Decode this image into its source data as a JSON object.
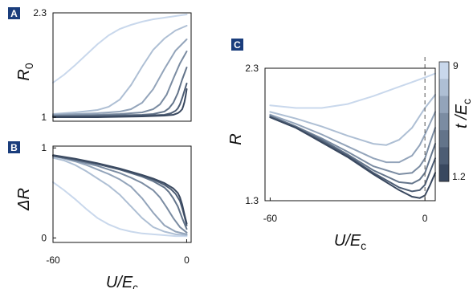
{
  "chart_data": [
    {
      "panel": "A",
      "type": "line",
      "xlim": [
        -60,
        2
      ],
      "ylim": [
        0.95,
        2.3
      ],
      "xticks": [],
      "yticks": [
        {
          "value": 2.3,
          "label": "2.3"
        },
        {
          "value": 1.0,
          "label": "1"
        }
      ],
      "ylabel": {
        "main": "R",
        "sub": "0"
      },
      "xlabel": null,
      "series": [
        {
          "x": [
            -60,
            -55,
            -50,
            -45,
            -40,
            -35,
            -30,
            -25,
            -20,
            -15,
            -10,
            -5,
            0
          ],
          "y": [
            1.43,
            1.53,
            1.65,
            1.78,
            1.91,
            2.02,
            2.1,
            2.15,
            2.19,
            2.22,
            2.24,
            2.26,
            2.28
          ]
        },
        {
          "x": [
            -60,
            -50,
            -40,
            -35,
            -30,
            -25,
            -20,
            -15,
            -10,
            -5,
            0
          ],
          "y": [
            1.04,
            1.06,
            1.09,
            1.13,
            1.22,
            1.4,
            1.63,
            1.84,
            1.98,
            2.08,
            2.14
          ]
        },
        {
          "x": [
            -60,
            -40,
            -30,
            -25,
            -20,
            -15,
            -10,
            -5,
            0
          ],
          "y": [
            1.03,
            1.05,
            1.07,
            1.1,
            1.18,
            1.35,
            1.6,
            1.83,
            1.97
          ]
        },
        {
          "x": [
            -60,
            -40,
            -30,
            -20,
            -15,
            -12,
            -9,
            -6,
            -3,
            0
          ],
          "y": [
            1.02,
            1.03,
            1.04,
            1.06,
            1.1,
            1.16,
            1.28,
            1.48,
            1.67,
            1.82
          ]
        },
        {
          "x": [
            -60,
            -40,
            -20,
            -15,
            -10,
            -8,
            -6,
            -4,
            -2,
            0
          ],
          "y": [
            1.01,
            1.02,
            1.03,
            1.04,
            1.07,
            1.11,
            1.18,
            1.3,
            1.47,
            1.62
          ]
        },
        {
          "x": [
            -60,
            -40,
            -20,
            -10,
            -7,
            -5,
            -4,
            -3,
            -2,
            -1,
            0
          ],
          "y": [
            1.01,
            1.01,
            1.02,
            1.03,
            1.05,
            1.08,
            1.11,
            1.16,
            1.24,
            1.33,
            1.42
          ]
        },
        {
          "x": [
            -60,
            -40,
            -20,
            -10,
            -6,
            -4,
            -3,
            -2,
            -1.5,
            -1,
            -0.5,
            0
          ],
          "y": [
            1.0,
            1.0,
            1.01,
            1.02,
            1.03,
            1.05,
            1.07,
            1.1,
            1.14,
            1.19,
            1.26,
            1.35
          ]
        }
      ]
    },
    {
      "panel": "B",
      "type": "line",
      "xlim": [
        -60,
        2
      ],
      "ylim": [
        -0.05,
        1.02
      ],
      "xticks": [
        {
          "value": -60,
          "label": "-60"
        },
        {
          "value": 0,
          "label": "0"
        }
      ],
      "yticks": [
        {
          "value": 1.0,
          "label": "1"
        },
        {
          "value": 0.0,
          "label": "0"
        }
      ],
      "ylabel": {
        "main": "ΔR",
        "sub": ""
      },
      "xlabel": {
        "main": "U/E",
        "sub": "c"
      },
      "series": [
        {
          "x": [
            -60,
            -55,
            -50,
            -45,
            -40,
            -35,
            -30,
            -25,
            -20,
            -15,
            -10,
            -5,
            0
          ],
          "y": [
            0.62,
            0.53,
            0.43,
            0.32,
            0.22,
            0.15,
            0.1,
            0.07,
            0.05,
            0.04,
            0.03,
            0.02,
            0.02
          ]
        },
        {
          "x": [
            -60,
            -55,
            -50,
            -45,
            -40,
            -35,
            -30,
            -25,
            -20,
            -15,
            -10,
            -5,
            0
          ],
          "y": [
            0.89,
            0.86,
            0.81,
            0.74,
            0.66,
            0.58,
            0.48,
            0.35,
            0.22,
            0.12,
            0.07,
            0.04,
            0.03
          ]
        },
        {
          "x": [
            -60,
            -55,
            -50,
            -45,
            -40,
            -35,
            -30,
            -25,
            -20,
            -15,
            -10,
            -5,
            0
          ],
          "y": [
            0.91,
            0.88,
            0.85,
            0.81,
            0.76,
            0.71,
            0.65,
            0.57,
            0.44,
            0.28,
            0.14,
            0.07,
            0.04
          ]
        },
        {
          "x": [
            -60,
            -55,
            -50,
            -45,
            -40,
            -35,
            -30,
            -25,
            -20,
            -15,
            -12,
            -9,
            -6,
            -3,
            0
          ],
          "y": [
            0.91,
            0.89,
            0.86,
            0.83,
            0.8,
            0.76,
            0.72,
            0.67,
            0.61,
            0.53,
            0.45,
            0.34,
            0.22,
            0.12,
            0.06
          ]
        },
        {
          "x": [
            -60,
            -50,
            -40,
            -30,
            -20,
            -15,
            -10,
            -8,
            -6,
            -4,
            -2,
            0
          ],
          "y": [
            0.91,
            0.87,
            0.82,
            0.76,
            0.68,
            0.63,
            0.56,
            0.51,
            0.44,
            0.35,
            0.22,
            0.1
          ]
        },
        {
          "x": [
            -60,
            -50,
            -40,
            -30,
            -20,
            -15,
            -10,
            -7,
            -5,
            -3,
            -2,
            -1,
            0
          ],
          "y": [
            0.91,
            0.87,
            0.82,
            0.76,
            0.69,
            0.65,
            0.59,
            0.54,
            0.49,
            0.41,
            0.33,
            0.24,
            0.14
          ]
        },
        {
          "x": [
            -60,
            -50,
            -40,
            -30,
            -20,
            -15,
            -10,
            -6,
            -4,
            -3,
            -2,
            -1,
            0
          ],
          "y": [
            0.92,
            0.88,
            0.83,
            0.77,
            0.7,
            0.66,
            0.61,
            0.55,
            0.5,
            0.45,
            0.37,
            0.26,
            0.16
          ]
        }
      ]
    },
    {
      "panel": "C",
      "type": "line",
      "xlim": [
        -62,
        4
      ],
      "ylim": [
        1.3,
        2.3
      ],
      "xticks": [
        {
          "value": -60,
          "label": "-60"
        },
        {
          "value": 0,
          "label": "0"
        }
      ],
      "yticks": [
        {
          "value": 2.3,
          "label": "2.3"
        },
        {
          "value": 1.3,
          "label": "1.3"
        }
      ],
      "ylabel": {
        "main": "R",
        "sub": ""
      },
      "xlabel": {
        "main": "U/E",
        "sub": "c"
      },
      "vline": {
        "x": 0
      },
      "colorbar": {
        "label_main": "t /E",
        "label_sub": "c",
        "max_label": "9",
        "min_label": "1.2",
        "colors": [
          "#c9d8ec",
          "#aebfd4",
          "#93a4ba",
          "#7b8ca2",
          "#63748a",
          "#4d5d74",
          "#39485f"
        ]
      },
      "series": [
        {
          "x": [
            -60,
            -50,
            -40,
            -30,
            -20,
            -10,
            0,
            4
          ],
          "y": [
            2.02,
            2.0,
            2.0,
            2.03,
            2.09,
            2.16,
            2.23,
            2.26
          ]
        },
        {
          "x": [
            -60,
            -50,
            -40,
            -30,
            -20,
            -15,
            -10,
            -5,
            0,
            4
          ],
          "y": [
            1.97,
            1.92,
            1.86,
            1.79,
            1.73,
            1.72,
            1.76,
            1.85,
            2.0,
            2.1
          ]
        },
        {
          "x": [
            -60,
            -50,
            -40,
            -30,
            -20,
            -15,
            -10,
            -5,
            -2,
            0,
            4
          ],
          "y": [
            1.95,
            1.88,
            1.8,
            1.71,
            1.62,
            1.59,
            1.59,
            1.64,
            1.72,
            1.8,
            1.97
          ]
        },
        {
          "x": [
            -60,
            -50,
            -40,
            -30,
            -20,
            -10,
            -5,
            -2,
            0,
            2,
            4
          ],
          "y": [
            1.94,
            1.86,
            1.77,
            1.67,
            1.56,
            1.5,
            1.51,
            1.56,
            1.62,
            1.74,
            1.85
          ]
        },
        {
          "x": [
            -60,
            -50,
            -40,
            -30,
            -20,
            -10,
            -5,
            -2,
            0,
            2,
            4
          ],
          "y": [
            1.94,
            1.86,
            1.76,
            1.65,
            1.53,
            1.44,
            1.43,
            1.46,
            1.51,
            1.62,
            1.73
          ]
        },
        {
          "x": [
            -60,
            -50,
            -40,
            -30,
            -20,
            -10,
            -5,
            -2,
            0,
            2,
            4
          ],
          "y": [
            1.93,
            1.85,
            1.75,
            1.64,
            1.51,
            1.4,
            1.37,
            1.38,
            1.42,
            1.52,
            1.62
          ]
        },
        {
          "x": [
            -60,
            -50,
            -40,
            -30,
            -20,
            -10,
            -5,
            -2,
            0,
            2,
            4
          ],
          "y": [
            1.93,
            1.85,
            1.74,
            1.63,
            1.5,
            1.38,
            1.33,
            1.32,
            1.34,
            1.42,
            1.51
          ]
        }
      ]
    }
  ],
  "panel_labels": [
    "A",
    "B",
    "C"
  ],
  "series_colors": [
    "#c9d8ec",
    "#aebfd4",
    "#93a4ba",
    "#7b8ca2",
    "#63748a",
    "#4d5d74",
    "#39485f"
  ],
  "badge_color": "#1a3d7c"
}
